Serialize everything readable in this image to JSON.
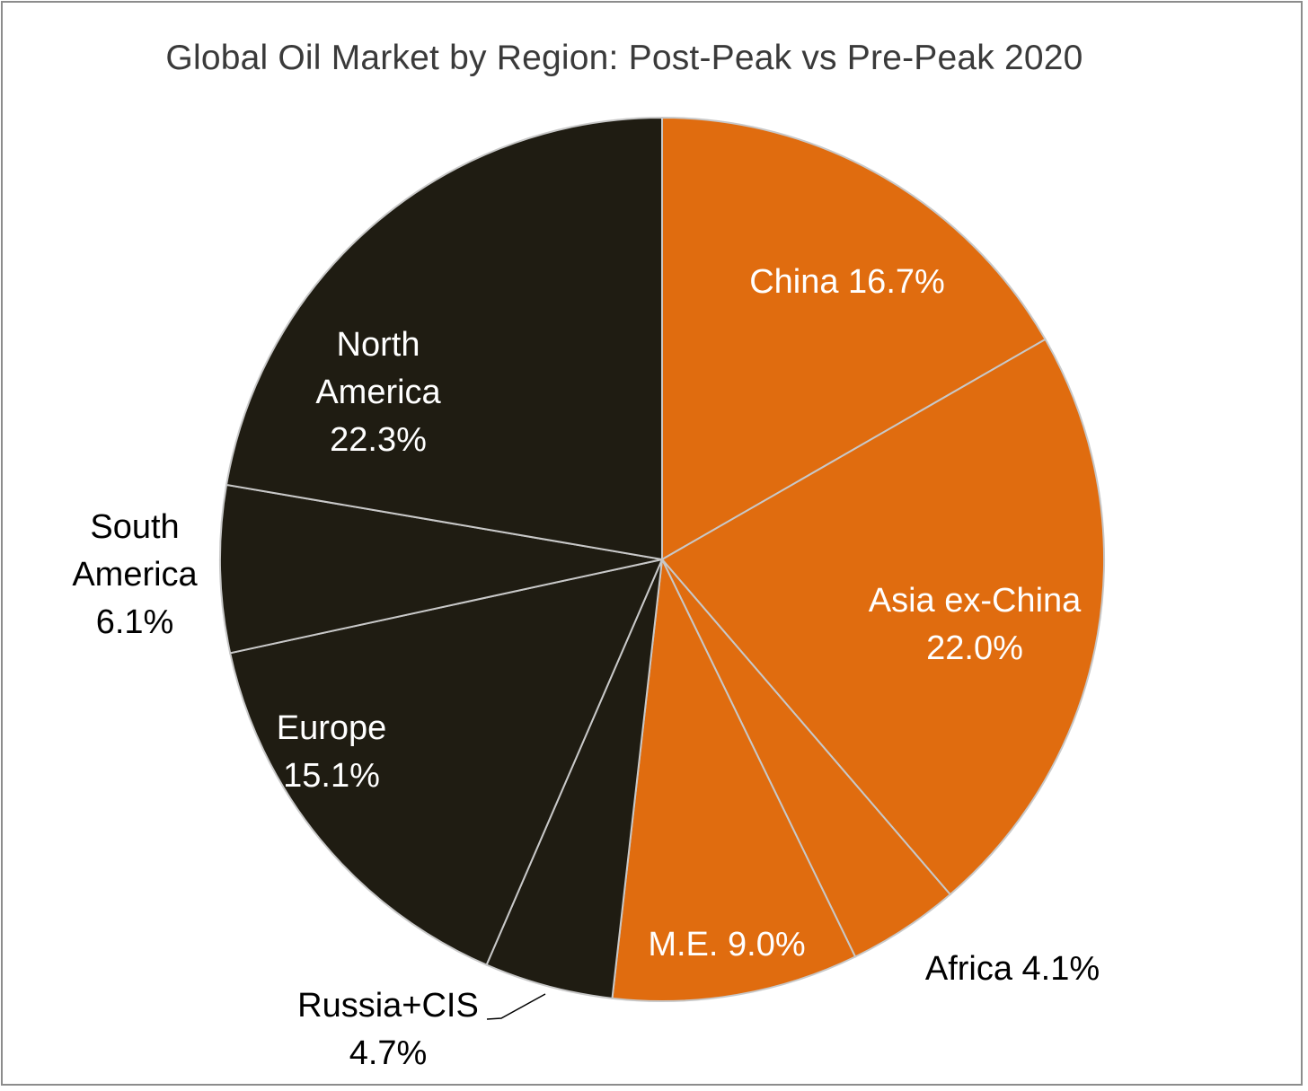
{
  "chart_data": {
    "type": "pie",
    "title": "Global Oil Market by Region: Post-Peak vs Pre-Peak 2020",
    "start_angle_deg": 0,
    "direction": "clockwise",
    "colors": {
      "post_peak": "#e06c0f",
      "pre_peak": "#1f1c12",
      "border": "#c8c8c8"
    },
    "slices": [
      {
        "name": "China",
        "value": 16.7,
        "group": "post_peak",
        "label_lines": [
          "China 16.7%"
        ],
        "label_color": "#ffffff"
      },
      {
        "name": "Asia ex-China",
        "value": 22.0,
        "group": "post_peak",
        "label_lines": [
          "Asia ex-China",
          "22.0%"
        ],
        "label_color": "#ffffff"
      },
      {
        "name": "Africa",
        "value": 4.1,
        "group": "post_peak",
        "label_lines": [
          "Africa 4.1%"
        ],
        "label_color": "#000000"
      },
      {
        "name": "M.E.",
        "value": 9.0,
        "group": "post_peak",
        "label_lines": [
          "M.E. 9.0%"
        ],
        "label_color": "#ffffff"
      },
      {
        "name": "Russia+CIS",
        "value": 4.7,
        "group": "pre_peak",
        "label_lines": [
          "Russia+CIS",
          "4.7%"
        ],
        "label_color": "#000000"
      },
      {
        "name": "Europe",
        "value": 15.1,
        "group": "pre_peak",
        "label_lines": [
          "Europe",
          "15.1%"
        ],
        "label_color": "#ffffff"
      },
      {
        "name": "South America",
        "value": 6.1,
        "group": "pre_peak",
        "label_lines": [
          "South",
          "America",
          "6.1%"
        ],
        "label_color": "#000000"
      },
      {
        "name": "North America",
        "value": 22.3,
        "group": "pre_peak",
        "label_lines": [
          "North",
          "America",
          "22.3%"
        ],
        "label_color": "#ffffff"
      }
    ]
  }
}
